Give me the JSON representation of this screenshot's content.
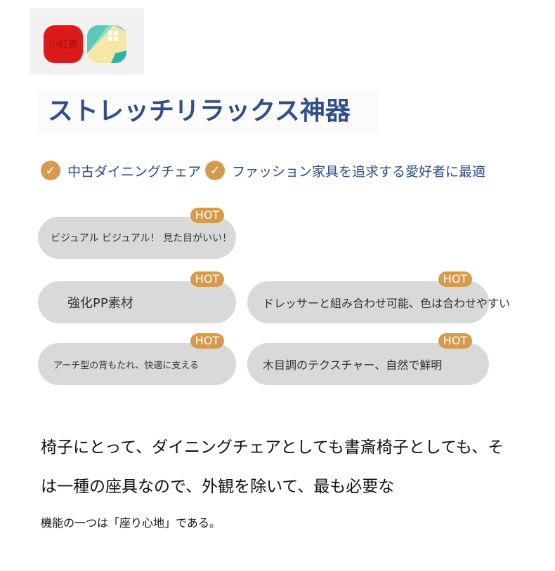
{
  "logos": {
    "app1_text": "小紅書"
  },
  "title": "ストレッチリラックス神器",
  "features": [
    "中古ダイニングチェア",
    "ファッション家具を追求する愛好者に最適"
  ],
  "hot_label": "HOT",
  "tags": [
    "ビジュアル ビジュアル！ 見た目がいい！",
    "強化PP素材",
    "ドレッサーと組み合わせ可能、色は合わせやすい",
    "アーチ型の背もたれ、快適に支える",
    "木目調のテクスチャー、自然で鮮明"
  ],
  "paragraph": [
    "椅子にとって、ダイニングチェアとしても書斎椅子としても、そ",
    "は一種の座具なので、外観を除いて、最も必要な",
    "機能の一つは「座り心地」である。"
  ],
  "colors": {
    "accent": "#d69a4c",
    "title": "#2f4f86",
    "pill": "#d9d9d9"
  }
}
